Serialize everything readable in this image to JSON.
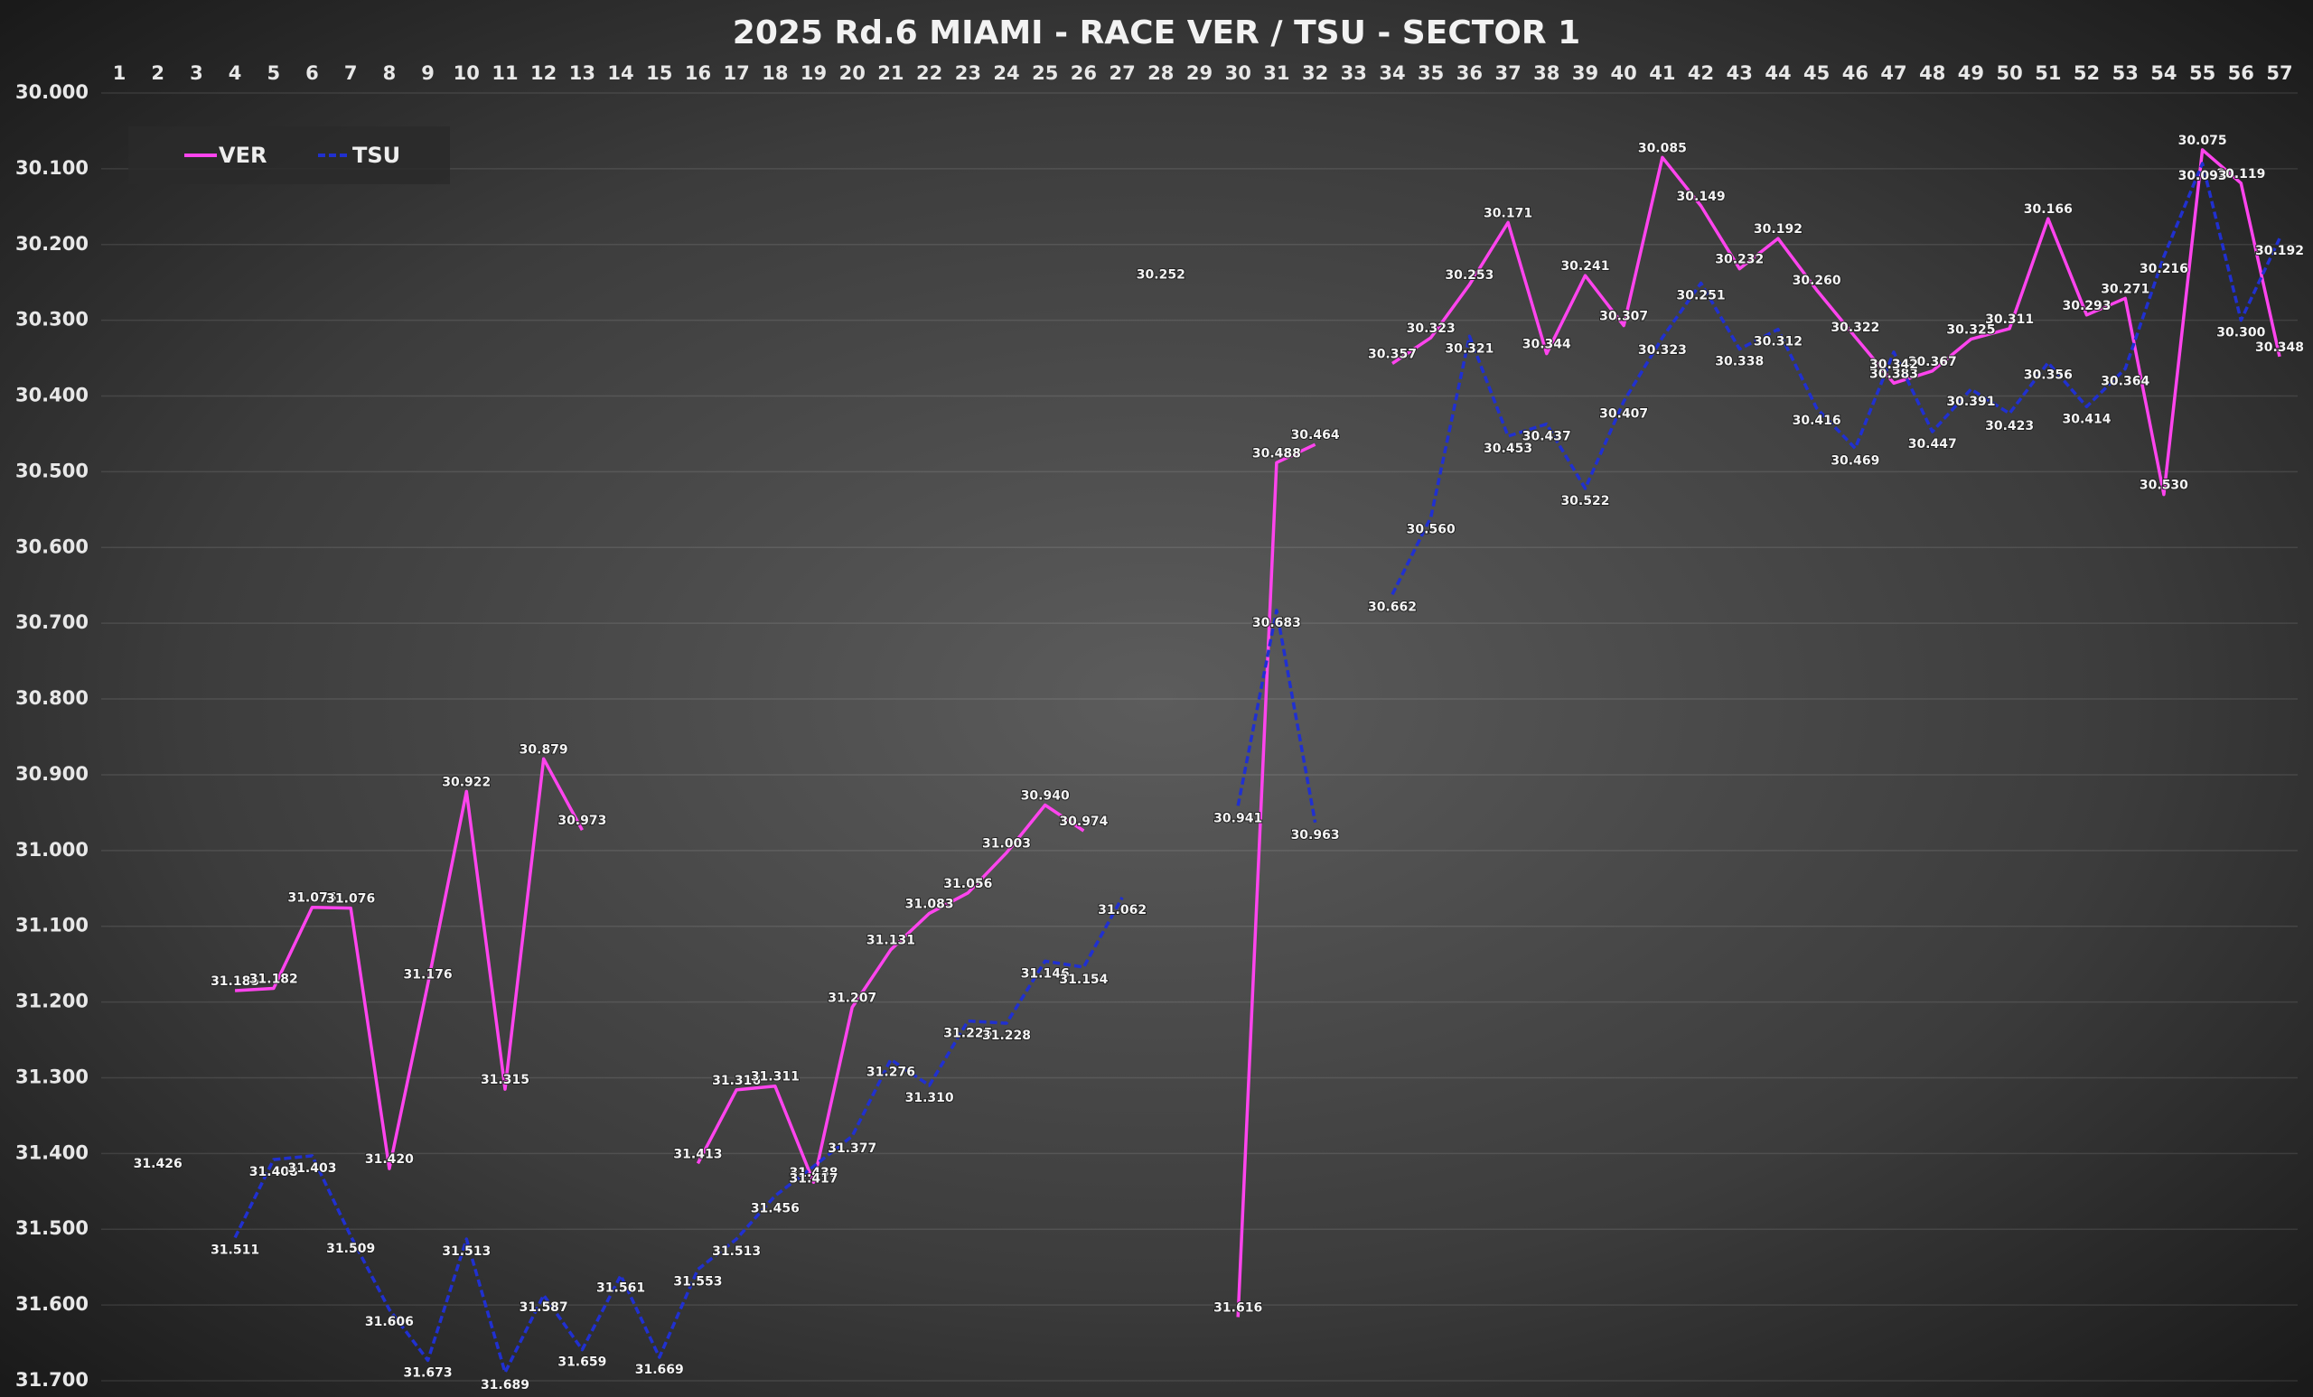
{
  "chart_data": {
    "type": "line",
    "title": "2025 Rd.6 MIAMI - RACE VER / TSU - SECTOR 1",
    "x": [
      1,
      2,
      3,
      4,
      5,
      6,
      7,
      8,
      9,
      10,
      11,
      12,
      13,
      14,
      15,
      16,
      17,
      18,
      19,
      20,
      21,
      22,
      23,
      24,
      25,
      26,
      27,
      28,
      29,
      30,
      31,
      32,
      33,
      34,
      35,
      36,
      37,
      38,
      39,
      40,
      41,
      42,
      43,
      44,
      45,
      46,
      47,
      48,
      49,
      50,
      51,
      52,
      53,
      54,
      55,
      56,
      57
    ],
    "ylim": [
      31.7,
      30
    ],
    "yticks": [
      {
        "value": 30,
        "label": "30.000"
      },
      {
        "value": 30.1,
        "label": "30.100"
      },
      {
        "value": 30.2,
        "label": "30.200"
      },
      {
        "value": 30.3,
        "label": "30.300"
      },
      {
        "value": 30.4,
        "label": "30.400"
      },
      {
        "value": 30.5,
        "label": "30.500"
      },
      {
        "value": 30.6,
        "label": "30.600"
      },
      {
        "value": 30.7,
        "label": "30.700"
      },
      {
        "value": 30.8,
        "label": "30.800"
      },
      {
        "value": 30.9,
        "label": "30.900"
      },
      {
        "value": 31,
        "label": "31.000"
      },
      {
        "value": 31.1,
        "label": "31.100"
      },
      {
        "value": 31.2,
        "label": "31.200"
      },
      {
        "value": 31.3,
        "label": "31.300"
      },
      {
        "value": 31.4,
        "label": "31.400"
      },
      {
        "value": 31.5,
        "label": "31.500"
      },
      {
        "value": 31.6,
        "label": "31.600"
      },
      {
        "value": 31.7,
        "label": "31.700"
      }
    ],
    "grid": true,
    "legend": "upper left",
    "series": [
      {
        "name": "VER",
        "color": "#ff44ee",
        "dashed": false,
        "values": [
          null,
          31.426,
          null,
          31.185,
          31.182,
          31.075,
          31.076,
          31.42,
          31.176,
          30.922,
          31.315,
          30.879,
          30.973,
          null,
          null,
          31.413,
          31.316,
          31.311,
          31.438,
          31.207,
          31.131,
          31.083,
          31.056,
          31.003,
          30.94,
          30.974,
          null,
          30.252,
          null,
          31.616,
          30.488,
          30.464,
          null,
          30.357,
          30.323,
          30.253,
          30.171,
          30.344,
          30.241,
          30.307,
          30.085,
          30.149,
          30.232,
          30.192,
          30.26,
          30.322,
          30.383,
          30.367,
          30.325,
          30.311,
          30.166,
          30.293,
          30.271,
          30.53,
          30.075,
          30.119,
          30.348
        ],
        "value_labels": [
          null,
          "31.426",
          null,
          "31.185",
          "31.182",
          "31.075",
          "31.076",
          "31.420",
          "31.176",
          "30.922",
          "31.315",
          "30.879",
          "30.973",
          null,
          null,
          "31.413",
          "31.316",
          "31.311",
          "31.438",
          "31.207",
          "31.131",
          "31.083",
          "31.056",
          "31.003",
          "30.940",
          "30.974",
          null,
          "30.252",
          null,
          "31.616",
          "30.488",
          "30.464",
          null,
          "30.357",
          "30.323",
          "30.253",
          "30.171",
          "30.344",
          "30.241",
          "30.307",
          "30.085",
          "30.149",
          "30.232",
          "30.192",
          "30.260",
          "30.322",
          "30.383",
          "30.367",
          "30.325",
          "30.311",
          "30.166",
          "30.293",
          "30.271",
          "30.530",
          "30.075",
          "30.119",
          "30.348"
        ]
      },
      {
        "name": "TSU",
        "color": "#2030d0",
        "dashed": true,
        "values": [
          null,
          null,
          null,
          31.511,
          31.408,
          31.403,
          31.509,
          31.606,
          31.673,
          31.513,
          31.689,
          31.587,
          31.659,
          31.561,
          31.669,
          31.553,
          31.513,
          31.456,
          31.417,
          31.377,
          31.276,
          31.31,
          31.225,
          31.228,
          31.146,
          31.154,
          31.062,
          null,
          null,
          30.941,
          30.683,
          30.963,
          null,
          30.662,
          30.56,
          30.321,
          30.453,
          30.437,
          30.522,
          30.407,
          30.323,
          30.251,
          30.338,
          30.312,
          30.416,
          30.469,
          30.342,
          30.447,
          30.391,
          30.423,
          30.356,
          30.414,
          30.364,
          30.216,
          30.093,
          30.3,
          30.192
        ],
        "value_labels": [
          null,
          null,
          null,
          "31.511",
          "31.408",
          "31.403",
          "31.509",
          "31.606",
          "31.673",
          "31.513",
          "31.689",
          "31.587",
          "31.659",
          "31.561",
          "31.669",
          "31.553",
          "31.513",
          "31.456",
          "31.417",
          "31.377",
          "31.276",
          "31.310",
          "31.225",
          "31.228",
          "31.146",
          "31.154",
          "31.062",
          null,
          null,
          "30.941",
          "30.683",
          "30.963",
          null,
          "30.662",
          "30.560",
          "30.321",
          "30.453",
          "30.437",
          "30.522",
          "30.407",
          "30.323",
          "30.251",
          "30.338",
          "30.312",
          "30.416",
          "30.469",
          "30.342",
          "30.447",
          "30.391",
          "30.423",
          "30.356",
          "30.414",
          "30.364",
          "30.216",
          "30.093",
          "30.300",
          "30.192"
        ]
      }
    ]
  }
}
